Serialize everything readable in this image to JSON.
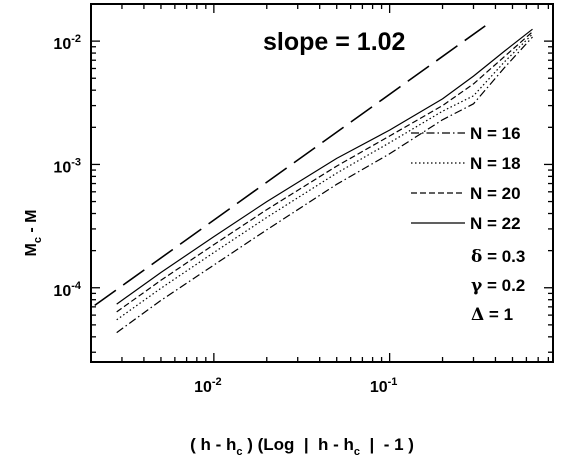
{
  "chart_data": {
    "type": "line",
    "title": "",
    "xlabel": "",
    "ylabel": "",
    "x_scale": "log",
    "y_scale": "log",
    "xlim": [
      0.002,
      0.85
    ],
    "ylim": [
      2.5e-05,
      0.02
    ],
    "grid": false,
    "legend_position": "right",
    "x_ticks": [
      {
        "value": 0.01,
        "base": "10",
        "exp": "-2"
      },
      {
        "value": 0.1,
        "base": "10",
        "exp": "-1"
      }
    ],
    "y_ticks": [
      {
        "value": 0.0001,
        "base": "10",
        "exp": "-4"
      },
      {
        "value": 0.001,
        "base": "10",
        "exp": "-3"
      },
      {
        "value": 0.01,
        "base": "10",
        "exp": "-2"
      }
    ],
    "series": [
      {
        "name": "N = 16",
        "dash": "dashdot",
        "x": [
          0.0028,
          0.005,
          0.01,
          0.02,
          0.05,
          0.1,
          0.2,
          0.3,
          0.45,
          0.65
        ],
        "y": [
          4.33e-05,
          7.9e-05,
          0.000153,
          0.000295,
          0.00069,
          0.00122,
          0.0023,
          0.0031,
          0.0061,
          0.0108
        ]
      },
      {
        "name": "N = 18",
        "dash": "dotted",
        "x": [
          0.0028,
          0.005,
          0.01,
          0.02,
          0.05,
          0.1,
          0.2,
          0.3,
          0.45,
          0.65
        ],
        "y": [
          5.5e-05,
          9.9e-05,
          0.000193,
          0.000372,
          0.00085,
          0.0015,
          0.0027,
          0.0036,
          0.0068,
          0.0114
        ]
      },
      {
        "name": "N = 20",
        "dash": "dashed",
        "x": [
          0.0028,
          0.005,
          0.01,
          0.02,
          0.05,
          0.1,
          0.2,
          0.3,
          0.45,
          0.65
        ],
        "y": [
          6.37e-05,
          0.000115,
          0.000224,
          0.00043,
          0.00097,
          0.0017,
          0.003,
          0.0045,
          0.0075,
          0.0119
        ]
      },
      {
        "name": "N = 22",
        "dash": "solid",
        "x": [
          0.0028,
          0.005,
          0.01,
          0.02,
          0.05,
          0.1,
          0.2,
          0.3,
          0.45,
          0.65
        ],
        "y": [
          7.37e-05,
          0.000133,
          0.00026,
          0.0005,
          0.00112,
          0.0019,
          0.0034,
          0.0052,
          0.0083,
          0.0125
        ]
      }
    ],
    "reference_line": {
      "label": "slope = 1.02",
      "slope": 1.02,
      "x": [
        0.0021,
        0.35
      ],
      "y": [
        7.2e-05,
        0.0133
      ]
    },
    "parameters": [
      {
        "symbol": "δ",
        "text": " = 0.3"
      },
      {
        "symbol": "γ",
        "text": " = 0.2"
      },
      {
        "symbol": "Δ",
        "text": " = 1"
      }
    ]
  },
  "axis_labels": {
    "y_main": "M",
    "y_sub": "c",
    "y_tail": " - M",
    "x_part1": "( h - h",
    "x_sub1": "c",
    "x_part2": " ) (Log  |  h - h",
    "x_sub2": "c",
    "x_part3": "  |  - 1 )"
  }
}
